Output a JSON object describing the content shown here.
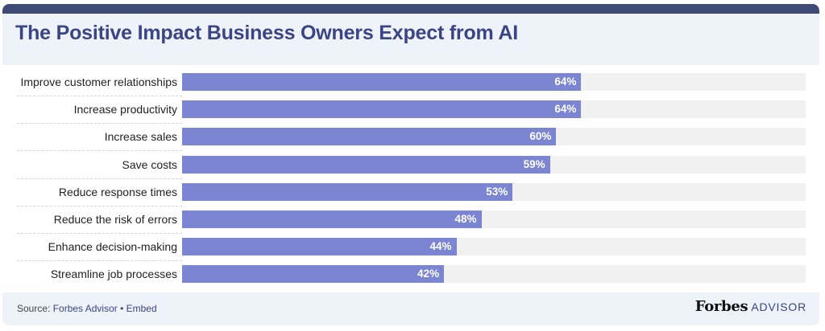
{
  "chart_data": {
    "type": "bar",
    "orientation": "horizontal",
    "title": "The Positive Impact Business Owners Expect from AI",
    "xlabel": "",
    "ylabel": "",
    "xlim": [
      0,
      100
    ],
    "categories": [
      "Improve customer relationships",
      "Increase productivity",
      "Increase sales",
      "Save costs",
      "Reduce response times",
      "Reduce the risk of errors",
      "Enhance decision-making",
      "Streamline job processes"
    ],
    "values": [
      64,
      64,
      60,
      59,
      53,
      48,
      44,
      42
    ],
    "value_labels": [
      "64%",
      "64%",
      "60%",
      "59%",
      "53%",
      "48%",
      "44%",
      "42%"
    ],
    "grid": false,
    "bar_color": "#7b85d1",
    "track_color": "#f1f1f1"
  },
  "footer": {
    "source_prefix": "Source: ",
    "source_name": "Forbes Advisor",
    "separator": " • ",
    "embed_label": "Embed"
  },
  "logo": {
    "brand": "Forbes",
    "product": "ADVISOR"
  },
  "colors": {
    "title": "#3b4584",
    "top_bar": "#3f4a78",
    "background": "#eef2f9"
  }
}
